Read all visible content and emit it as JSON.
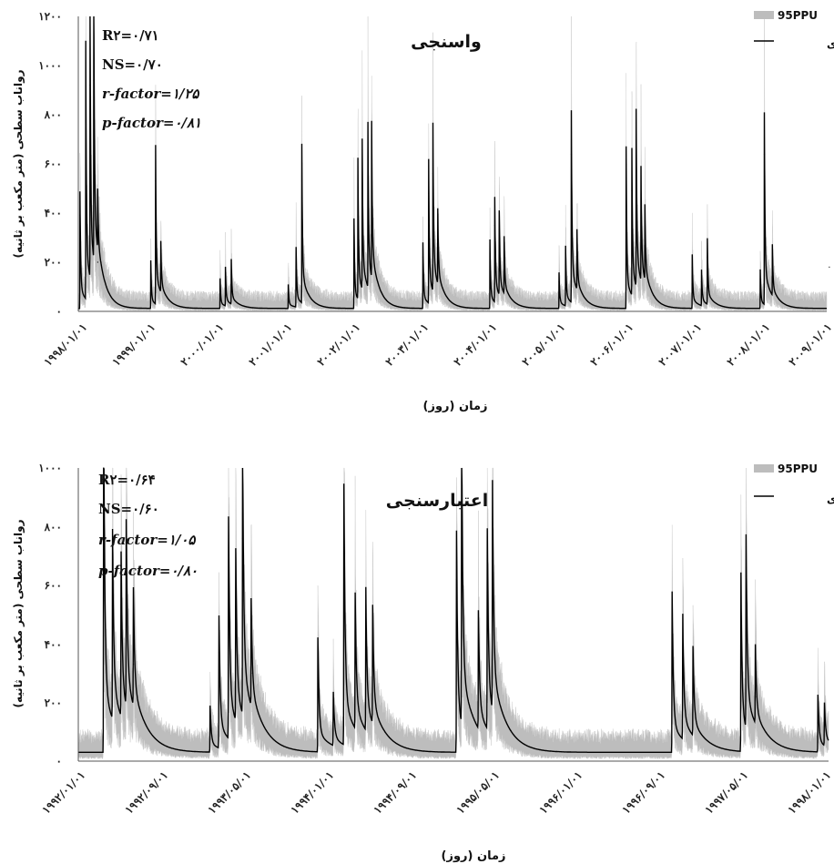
{
  "chart_data": [
    {
      "type": "area",
      "title": "واسنجی",
      "ylabel": "رواناب سطحی (متر مکعب بر ثانیه)",
      "xlabel": "زمان (روز)",
      "y_tick_labels": [
        "۰",
        "۲۰۰",
        "۴۰۰",
        "۶۰۰",
        "۸۰۰",
        "۱۰۰۰",
        "۱۲۰۰"
      ],
      "ylim": [
        0,
        1200
      ],
      "x_tick_labels": [
        "۱۹۹۸/۰۱/۰۱",
        "۱۹۹۹/۰۱/۰۱",
        "۲۰۰۰/۰۱/۰۱",
        "۲۰۰۱/۰۱/۰۱",
        "۲۰۰۲/۰۱/۰۱",
        "۲۰۰۳/۰۱/۰۱",
        "۲۰۰۴/۰۱/۰۱",
        "۲۰۰۵/۰۱/۰۱",
        "۲۰۰۶/۰۱/۰۱",
        "۲۰۰۷/۰۱/۰۱",
        "۲۰۰۸/۰۱/۰۱",
        "۲۰۰۹/۰۱/۰۱"
      ],
      "x": [
        "1998-01-01",
        "1999-01-01",
        "2000-01-01",
        "2001-01-01",
        "2002-01-01",
        "2003-01-01",
        "2004-01-01",
        "2005-01-01",
        "2006-01-01",
        "2007-01-01",
        "2008-01-01",
        "2009-01-01"
      ],
      "legend": [
        "95PPU",
        "مشاهده ای"
      ],
      "legend_position": "top-right",
      "stats": {
        "r2": "R۲=۰/۷۱",
        "ns": "NS=۰/۷۰",
        "r_factor": "r-factor=۱/۲۵",
        "p_factor": "p-factor=۰/۸۱"
      },
      "series": [
        {
          "name": "مشاهده ای",
          "peaks": [
            {
              "x": "1998-01-10",
              "y": 390
            },
            {
              "x": "1998-02-10",
              "y": 860
            },
            {
              "x": "1998-03-05",
              "y": 920
            },
            {
              "x": "1998-03-25",
              "y": 940
            },
            {
              "x": "1998-04-15",
              "y": 200
            },
            {
              "x": "1999-01-25",
              "y": 160
            },
            {
              "x": "1999-02-20",
              "y": 530
            },
            {
              "x": "1999-03-20",
              "y": 170
            },
            {
              "x": "2000-02-01",
              "y": 100
            },
            {
              "x": "2000-03-01",
              "y": 130
            },
            {
              "x": "2000-04-01",
              "y": 150
            },
            {
              "x": "2001-02-01",
              "y": 80
            },
            {
              "x": "2001-03-15",
              "y": 200
            },
            {
              "x": "2001-04-15",
              "y": 530
            },
            {
              "x": "2002-01-20",
              "y": 300
            },
            {
              "x": "2002-02-10",
              "y": 470
            },
            {
              "x": "2002-03-05",
              "y": 500
            },
            {
              "x": "2002-04-05",
              "y": 550
            },
            {
              "x": "2002-04-25",
              "y": 520
            },
            {
              "x": "2003-01-25",
              "y": 220
            },
            {
              "x": "2003-02-25",
              "y": 480
            },
            {
              "x": "2003-03-20",
              "y": 560
            },
            {
              "x": "2003-04-15",
              "y": 250
            },
            {
              "x": "2004-01-20",
              "y": 230
            },
            {
              "x": "2004-02-15",
              "y": 350
            },
            {
              "x": "2004-03-10",
              "y": 280
            },
            {
              "x": "2004-04-05",
              "y": 190
            },
            {
              "x": "2005-01-25",
              "y": 120
            },
            {
              "x": "2005-03-01",
              "y": 200
            },
            {
              "x": "2005-04-01",
              "y": 640
            },
            {
              "x": "2005-05-01",
              "y": 200
            },
            {
              "x": "2006-01-20",
              "y": 540
            },
            {
              "x": "2006-02-20",
              "y": 490
            },
            {
              "x": "2006-03-15",
              "y": 590
            },
            {
              "x": "2006-04-10",
              "y": 380
            },
            {
              "x": "2006-05-01",
              "y": 250
            },
            {
              "x": "2007-01-10",
              "y": 180
            },
            {
              "x": "2007-03-01",
              "y": 120
            },
            {
              "x": "2007-04-01",
              "y": 220
            },
            {
              "x": "2008-01-10",
              "y": 130
            },
            {
              "x": "2008-02-01",
              "y": 640
            },
            {
              "x": "2008-03-15",
              "y": 170
            },
            {
              "x": "2009-01-15",
              "y": 180
            },
            {
              "x": "2009-02-15",
              "y": 80
            }
          ]
        }
      ]
    },
    {
      "type": "area",
      "title": "اعتبارسنجی",
      "ylabel": "رواناب سطحی (متر مکعب بر ثانیه)",
      "xlabel": "زمان (روز)",
      "y_tick_labels": [
        "۰",
        "۲۰۰",
        "۴۰۰",
        "۶۰۰",
        "۸۰۰",
        "۱۰۰۰"
      ],
      "ylim": [
        0,
        1000
      ],
      "x_tick_labels": [
        "۱۹۹۲/۰۱/۰۱",
        "۱۹۹۲/۰۹/۰۱",
        "۱۹۹۳/۰۵/۰۱",
        "۱۹۹۴/۰۱/۰۱",
        "۱۹۹۴/۰۹/۰۱",
        "۱۹۹۵/۰۵/۰۱",
        "۱۹۹۶/۰۱/۰۱",
        "۱۹۹۶/۰۹/۰۱",
        "۱۹۹۷/۰۵/۰۱",
        "۱۹۹۸/۰۱/۰۱"
      ],
      "x": [
        "1992-01-01",
        "1992-09-01",
        "1993-05-01",
        "1994-01-01",
        "1994-09-01",
        "1995-05-01",
        "1996-01-01",
        "1996-09-01",
        "1997-05-01",
        "1998-01-01"
      ],
      "legend": [
        "95PPU",
        "مشاهده ای"
      ],
      "legend_position": "top-right",
      "stats": {
        "r2": "R۲=۰/۶۴",
        "ns": "NS=۰/۶۰",
        "r_factor": "r-factor=۱/۰۵",
        "p_factor": "p-factor=۰/۸۰"
      },
      "series": [
        {
          "name": "مشاهده ای",
          "peaks": [
            {
              "x": "1992-03-15",
              "y": 1000
            },
            {
              "x": "1992-04-10",
              "y": 530
            },
            {
              "x": "1992-05-05",
              "y": 460
            },
            {
              "x": "1992-05-20",
              "y": 520
            },
            {
              "x": "1992-06-10",
              "y": 330
            },
            {
              "x": "1993-01-20",
              "y": 130
            },
            {
              "x": "1993-02-15",
              "y": 370
            },
            {
              "x": "1993-03-15",
              "y": 620
            },
            {
              "x": "1993-04-05",
              "y": 480
            },
            {
              "x": "1993-04-25",
              "y": 760
            },
            {
              "x": "1993-05-20",
              "y": 300
            },
            {
              "x": "1993-12-01",
              "y": 320
            },
            {
              "x": "1994-01-15",
              "y": 150
            },
            {
              "x": "1994-02-15",
              "y": 730
            },
            {
              "x": "1994-03-20",
              "y": 380
            },
            {
              "x": "1994-04-20",
              "y": 400
            },
            {
              "x": "1994-05-10",
              "y": 330
            },
            {
              "x": "1995-01-10",
              "y": 620
            },
            {
              "x": "1995-01-25",
              "y": 840
            },
            {
              "x": "1995-03-15",
              "y": 330
            },
            {
              "x": "1995-04-10",
              "y": 560
            },
            {
              "x": "1995-04-25",
              "y": 640
            },
            {
              "x": "1996-10-01",
              "y": 450
            },
            {
              "x": "1996-11-01",
              "y": 350
            },
            {
              "x": "1996-12-01",
              "y": 250
            },
            {
              "x": "1997-04-20",
              "y": 500
            },
            {
              "x": "1997-05-05",
              "y": 540
            },
            {
              "x": "1997-06-01",
              "y": 220
            },
            {
              "x": "1997-12-01",
              "y": 160
            },
            {
              "x": "1997-12-20",
              "y": 120
            }
          ]
        }
      ]
    }
  ]
}
